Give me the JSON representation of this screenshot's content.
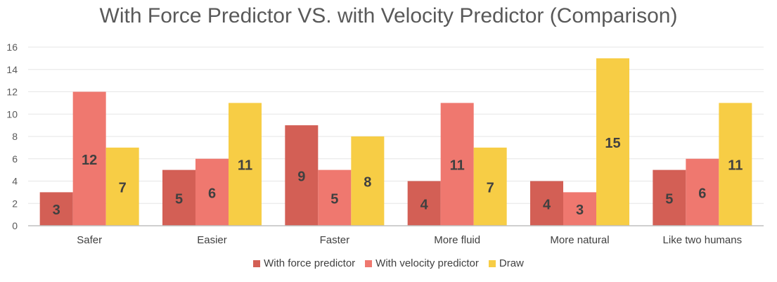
{
  "chart_data": {
    "type": "bar",
    "title": "With Force Predictor VS. with Velocity Predictor (Comparison)",
    "xlabel": "",
    "ylabel": "",
    "categories": [
      "Safer",
      "Easier",
      "Faster",
      "More fluid",
      "More natural",
      "Like two humans"
    ],
    "series": [
      {
        "name": "With force predictor",
        "color": "#d35f55",
        "values": [
          3,
          5,
          9,
          4,
          4,
          5
        ]
      },
      {
        "name": "With velocity predictor",
        "color": "#ef786f",
        "values": [
          12,
          6,
          5,
          11,
          3,
          6
        ]
      },
      {
        "name": "Draw",
        "color": "#f7cd45",
        "values": [
          7,
          11,
          8,
          7,
          15,
          11
        ]
      }
    ],
    "ylim": [
      0,
      16
    ],
    "yticks": [
      0,
      2,
      4,
      6,
      8,
      10,
      12,
      14,
      16
    ],
    "grid": true,
    "legend_position": "bottom"
  }
}
